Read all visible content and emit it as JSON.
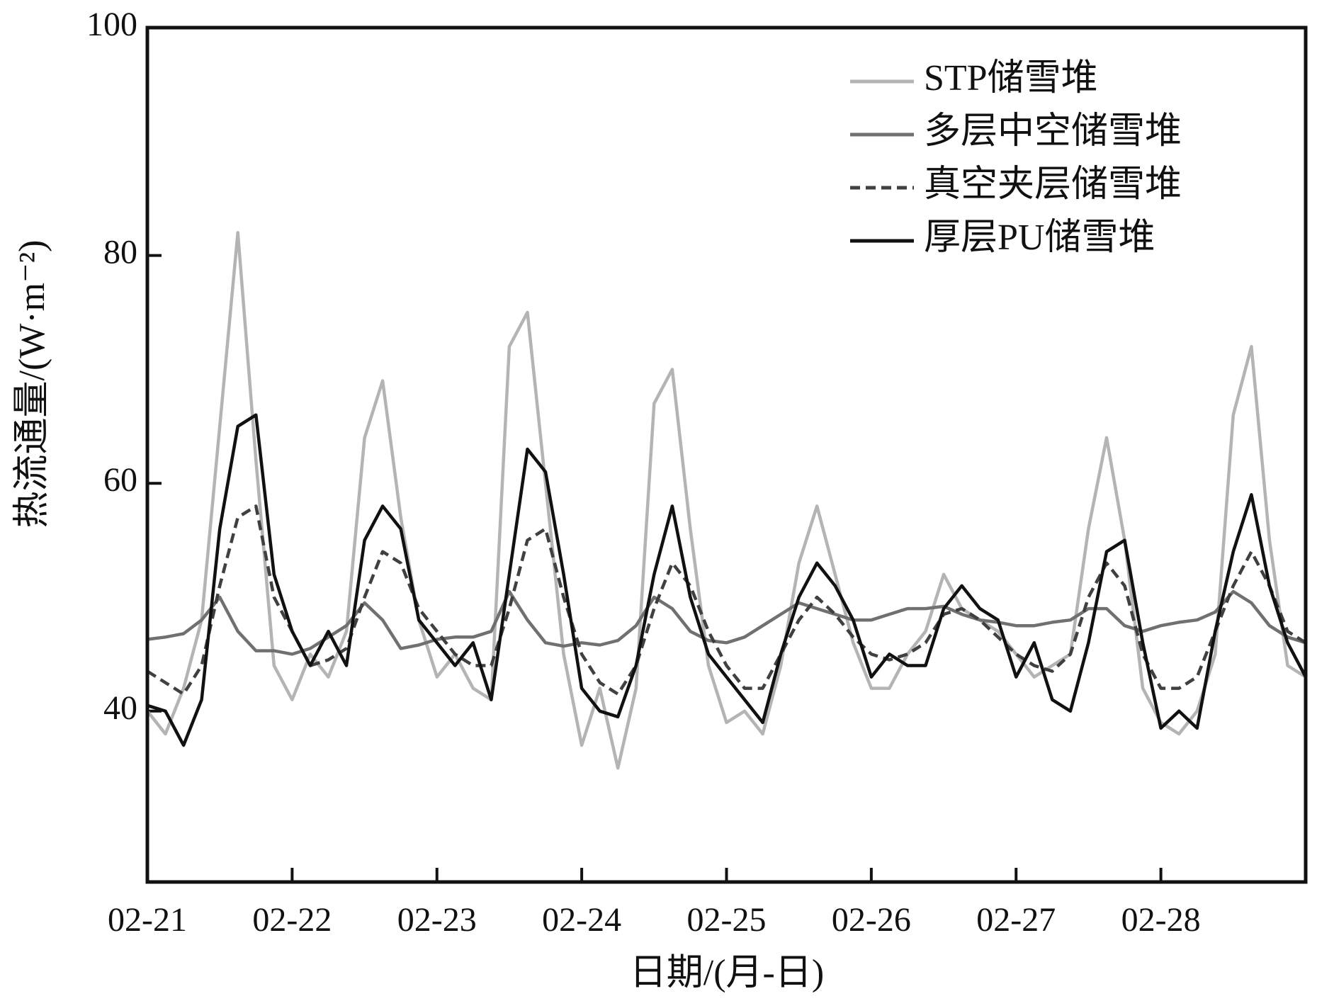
{
  "chart_data": {
    "type": "line",
    "x_label": "日期/(月-日)",
    "y_label": "热流通量/(W·m⁻²)",
    "x": [
      0,
      0.125,
      0.25,
      0.375,
      0.5,
      0.625,
      0.75,
      0.875,
      1,
      1.125,
      1.25,
      1.375,
      1.5,
      1.625,
      1.75,
      1.875,
      2,
      2.125,
      2.25,
      2.375,
      2.5,
      2.625,
      2.75,
      2.875,
      3,
      3.125,
      3.25,
      3.375,
      3.5,
      3.625,
      3.75,
      3.875,
      4,
      4.125,
      4.25,
      4.375,
      4.5,
      4.625,
      4.75,
      4.875,
      5,
      5.125,
      5.25,
      5.375,
      5.5,
      5.625,
      5.75,
      5.875,
      6,
      6.125,
      6.25,
      6.375,
      6.5,
      6.625,
      6.75,
      6.875,
      7,
      7.125,
      7.25,
      7.375,
      7.5,
      7.625,
      7.75,
      7.875,
      8
    ],
    "series": [
      {
        "name": "STP储雪堆",
        "color": "#b4b4b4",
        "dash": false,
        "values": [
          40,
          38,
          42,
          48,
          65,
          82,
          62,
          44,
          41,
          45,
          43,
          47,
          64,
          69,
          57,
          48,
          43,
          45,
          42,
          41,
          72,
          75,
          60,
          45,
          37,
          42,
          35,
          42,
          67,
          70,
          56,
          44,
          39,
          40,
          38,
          44,
          53,
          58,
          52,
          46,
          42,
          42,
          45,
          47,
          52,
          49,
          48,
          47,
          45,
          43,
          44,
          45,
          56,
          64,
          55,
          42,
          39,
          38,
          40,
          45,
          66,
          72,
          55,
          44,
          43
        ]
      },
      {
        "name": "多层中空储雪堆",
        "color": "#707070",
        "dash": false,
        "values": [
          46.3,
          46.5,
          46.8,
          48,
          50,
          47,
          45.3,
          45.3,
          45,
          45.5,
          46.5,
          47.5,
          49.5,
          48,
          45.5,
          45.8,
          46.3,
          46.5,
          46.5,
          47,
          50.5,
          48,
          46,
          45.7,
          46,
          45.8,
          46.2,
          47.5,
          50,
          49,
          47,
          46.2,
          46,
          46.5,
          47.5,
          48.5,
          49.5,
          49,
          48.5,
          48,
          48,
          48.5,
          49,
          49,
          49.2,
          48.5,
          48,
          47.8,
          47.5,
          47.5,
          47.8,
          48,
          49,
          49,
          47.5,
          47,
          47.5,
          47.8,
          48,
          48.7,
          50.5,
          49.5,
          47.5,
          46.5,
          46
        ]
      },
      {
        "name": "真空夹层储雪堆",
        "color": "#404040",
        "dash": true,
        "values": [
          43.5,
          42.5,
          41.5,
          44,
          51,
          57,
          58,
          50,
          47,
          44,
          44.5,
          45.5,
          50,
          54,
          53,
          49,
          47,
          45,
          44,
          44,
          49,
          55,
          56,
          50,
          45,
          42.5,
          41.5,
          44,
          49,
          53,
          51,
          47,
          44,
          42,
          42,
          45,
          48,
          50,
          48.5,
          46.5,
          45,
          44.5,
          45,
          46,
          48.5,
          49,
          48,
          46.5,
          45,
          44,
          43.5,
          45,
          50,
          53,
          51,
          45,
          42,
          42,
          43,
          47,
          51,
          54,
          51,
          47,
          46
        ]
      },
      {
        "name": "厚层PU储雪堆",
        "color": "#111111",
        "dash": false,
        "values": [
          40.5,
          40,
          37,
          41,
          56,
          65,
          66,
          52,
          47,
          44,
          47,
          44,
          55,
          58,
          56,
          48,
          46,
          44,
          46,
          41,
          52,
          63,
          61,
          52,
          42,
          40,
          39.5,
          44,
          52,
          58,
          50,
          45,
          43,
          41,
          39,
          45,
          50,
          53,
          51,
          48,
          43,
          45,
          44,
          44,
          49,
          51,
          49,
          48,
          43,
          46,
          41,
          40,
          46,
          54,
          55,
          46,
          38.5,
          40,
          38.5,
          47,
          54,
          59,
          51,
          46,
          43
        ]
      }
    ],
    "xlim": [
      0,
      8
    ],
    "xticks": [
      {
        "value": 0,
        "label": "02-21"
      },
      {
        "value": 1,
        "label": "02-22"
      },
      {
        "value": 2,
        "label": "02-23"
      },
      {
        "value": 3,
        "label": "02-24"
      },
      {
        "value": 4,
        "label": "02-25"
      },
      {
        "value": 5,
        "label": "02-26"
      },
      {
        "value": 6,
        "label": "02-27"
      },
      {
        "value": 7,
        "label": "02-28"
      }
    ],
    "ylim": [
      25,
      100
    ],
    "yticks": [
      40,
      60,
      80,
      100
    ],
    "legend": "upper right",
    "grid": false
  }
}
